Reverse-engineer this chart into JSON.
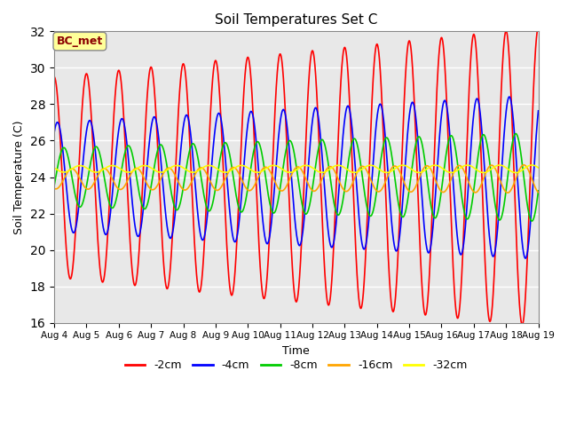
{
  "title": "Soil Temperatures Set C",
  "xlabel": "Time",
  "ylabel": "Soil Temperature (C)",
  "ylim": [
    16,
    32
  ],
  "yticks": [
    16,
    18,
    20,
    22,
    24,
    26,
    28,
    30,
    32
  ],
  "xtick_labels": [
    "Aug 4",
    "Aug 5",
    "Aug 6",
    "Aug 7",
    "Aug 8",
    "Aug 9",
    "Aug 10",
    "Aug 11",
    "Aug 12",
    "Aug 13",
    "Aug 14",
    "Aug 15",
    "Aug 16",
    "Aug 17",
    "Aug 18",
    "Aug 19"
  ],
  "annotation_text": "BC_met",
  "annotation_color": "#8B0000",
  "annotation_bg": "#FFFF99",
  "lines": [
    {
      "label": "-2cm",
      "color": "#FF0000",
      "mean": 24.0,
      "base_amplitude": 5.5,
      "amplitude_growth": 0.18,
      "period": 1.0,
      "phase": 0.75
    },
    {
      "label": "-4cm",
      "color": "#0000FF",
      "mean": 24.0,
      "base_amplitude": 3.0,
      "amplitude_growth": 0.1,
      "period": 1.0,
      "phase": 0.85
    },
    {
      "label": "-8cm",
      "color": "#00CC00",
      "mean": 24.0,
      "base_amplitude": 1.6,
      "amplitude_growth": 0.055,
      "period": 1.0,
      "phase": 0.05
    },
    {
      "label": "-16cm",
      "color": "#FFA500",
      "mean": 23.9,
      "base_amplitude": 0.55,
      "amplitude_growth": 0.015,
      "period": 1.0,
      "phase": 0.3
    },
    {
      "label": "-32cm",
      "color": "#FFFF00",
      "mean": 24.45,
      "base_amplitude": 0.18,
      "amplitude_growth": 0.002,
      "period": 1.0,
      "phase": 0.55
    }
  ],
  "background_color": "#E8E8E8",
  "grid_color": "white",
  "legend_colors": [
    "#FF0000",
    "#0000FF",
    "#00CC00",
    "#FFA500",
    "#FFFF00"
  ],
  "legend_labels": [
    "-2cm",
    "-4cm",
    "-8cm",
    "-16cm",
    "-32cm"
  ]
}
